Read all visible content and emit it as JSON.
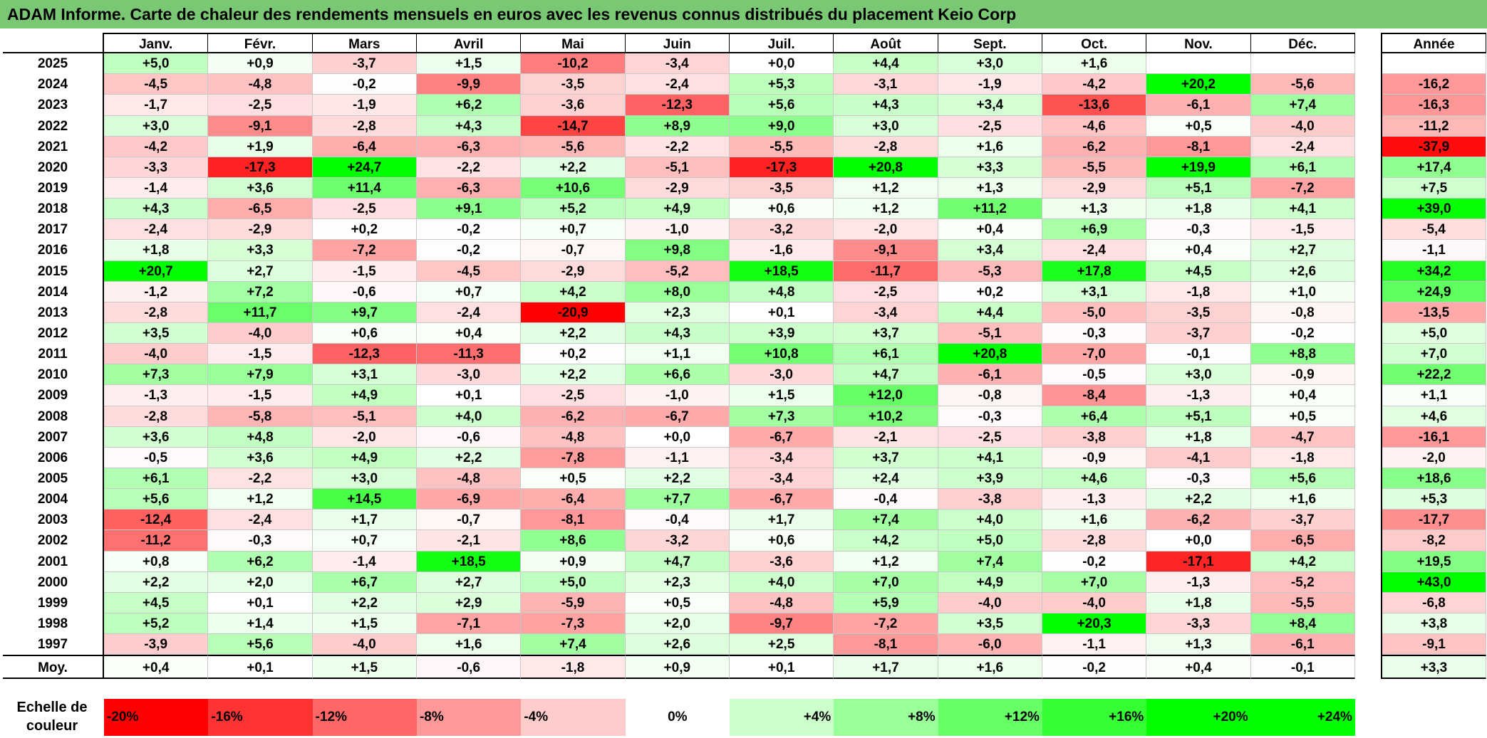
{
  "title": "ADAM Informe. Carte de chaleur des rendements mensuels en euros avec les revenus connus distribués du placement Keio Corp",
  "colors": {
    "title_bg": "#7ac774",
    "red": "#ff0000",
    "green": "#00ff00"
  },
  "chart_data": {
    "type": "heatmap",
    "columns": [
      "Janv.",
      "Févr.",
      "Mars",
      "Avril",
      "Mai",
      "Juin",
      "Juil.",
      "Août",
      "Sept.",
      "Oct.",
      "Nov.",
      "Déc."
    ],
    "annual_header": "Année",
    "rows": [
      {
        "year": "2025",
        "values": [
          "+5,0",
          "+0,9",
          "-3,7",
          "+1,5",
          "-10,2",
          "-3,4",
          "+0,0",
          "+4,4",
          "+3,0",
          "+1,6",
          "",
          ""
        ],
        "annual": ""
      },
      {
        "year": "2024",
        "values": [
          "-4,5",
          "-4,8",
          "-0,2",
          "-9,9",
          "-3,5",
          "-2,4",
          "+5,3",
          "-3,1",
          "-1,9",
          "-4,2",
          "+20,2",
          "-5,6"
        ],
        "annual": "-16,2"
      },
      {
        "year": "2023",
        "values": [
          "-1,7",
          "-2,5",
          "-1,9",
          "+6,2",
          "-3,6",
          "-12,3",
          "+5,6",
          "+4,3",
          "+3,4",
          "-13,6",
          "-6,1",
          "+7,4"
        ],
        "annual": "-16,3"
      },
      {
        "year": "2022",
        "values": [
          "+3,0",
          "-9,1",
          "-2,8",
          "+4,3",
          "-14,7",
          "+8,9",
          "+9,0",
          "+3,0",
          "-2,5",
          "-4,6",
          "+0,5",
          "-4,0"
        ],
        "annual": "-11,2"
      },
      {
        "year": "2021",
        "values": [
          "-4,2",
          "+1,9",
          "-6,4",
          "-6,3",
          "-5,6",
          "-2,2",
          "-5,5",
          "-2,8",
          "+1,6",
          "-6,2",
          "-8,1",
          "-2,4"
        ],
        "annual": "-37,9"
      },
      {
        "year": "2020",
        "values": [
          "-3,3",
          "-17,3",
          "+24,7",
          "-2,2",
          "+2,2",
          "-5,1",
          "-17,3",
          "+20,8",
          "+3,3",
          "-5,5",
          "+19,9",
          "+6,1"
        ],
        "annual": "+17,4"
      },
      {
        "year": "2019",
        "values": [
          "-1,4",
          "+3,6",
          "+11,4",
          "-6,3",
          "+10,6",
          "-2,9",
          "-3,5",
          "+1,2",
          "+1,3",
          "-2,9",
          "+5,1",
          "-7,2"
        ],
        "annual": "+7,5"
      },
      {
        "year": "2018",
        "values": [
          "+4,3",
          "-6,5",
          "-2,5",
          "+9,1",
          "+5,2",
          "+4,9",
          "+0,6",
          "+1,2",
          "+11,2",
          "+1,3",
          "+1,8",
          "+4,1"
        ],
        "annual": "+39,0"
      },
      {
        "year": "2017",
        "values": [
          "-2,4",
          "-2,9",
          "+0,2",
          "-0,2",
          "+0,7",
          "-1,0",
          "-3,2",
          "-2,0",
          "+0,4",
          "+6,9",
          "-0,3",
          "-1,5"
        ],
        "annual": "-5,4"
      },
      {
        "year": "2016",
        "values": [
          "+1,8",
          "+3,3",
          "-7,2",
          "-0,2",
          "-0,7",
          "+9,8",
          "-1,6",
          "-9,1",
          "+3,4",
          "-2,4",
          "+0,4",
          "+2,7"
        ],
        "annual": "-1,1"
      },
      {
        "year": "2015",
        "values": [
          "+20,7",
          "+2,7",
          "-1,5",
          "-4,5",
          "-2,9",
          "-5,2",
          "+18,5",
          "-11,7",
          "-5,3",
          "+17,8",
          "+4,5",
          "+2,6"
        ],
        "annual": "+34,2"
      },
      {
        "year": "2014",
        "values": [
          "-1,2",
          "+7,2",
          "-0,6",
          "+0,7",
          "+4,2",
          "+8,0",
          "+4,8",
          "-2,5",
          "+0,2",
          "+3,1",
          "-1,8",
          "+1,0"
        ],
        "annual": "+24,9"
      },
      {
        "year": "2013",
        "values": [
          "-2,8",
          "+11,7",
          "+9,7",
          "-2,4",
          "-20,9",
          "+2,3",
          "+0,1",
          "-3,4",
          "+4,4",
          "-5,0",
          "-3,5",
          "-0,8"
        ],
        "annual": "-13,5"
      },
      {
        "year": "2012",
        "values": [
          "+3,5",
          "-4,0",
          "+0,6",
          "+0,4",
          "+2,2",
          "+4,3",
          "+3,9",
          "+3,7",
          "-5,1",
          "-0,3",
          "-3,7",
          "-0,2"
        ],
        "annual": "+5,0"
      },
      {
        "year": "2011",
        "values": [
          "-4,0",
          "-1,5",
          "-12,3",
          "-11,3",
          "+0,2",
          "+1,1",
          "+10,8",
          "+6,1",
          "+20,8",
          "-7,0",
          "-0,1",
          "+8,8"
        ],
        "annual": "+7,0"
      },
      {
        "year": "2010",
        "values": [
          "+7,3",
          "+7,9",
          "+3,1",
          "-3,0",
          "+2,2",
          "+6,6",
          "-3,0",
          "+4,7",
          "-6,1",
          "-0,5",
          "+3,0",
          "-0,9"
        ],
        "annual": "+22,2"
      },
      {
        "year": "2009",
        "values": [
          "-1,3",
          "-1,5",
          "+4,9",
          "+0,1",
          "-2,5",
          "-1,0",
          "+1,5",
          "+12,0",
          "-0,8",
          "-8,4",
          "-1,3",
          "+0,4"
        ],
        "annual": "+1,1"
      },
      {
        "year": "2008",
        "values": [
          "-2,8",
          "-5,8",
          "-5,1",
          "+4,0",
          "-6,2",
          "-6,7",
          "+7,3",
          "+10,2",
          "-0,3",
          "+6,4",
          "+5,1",
          "+0,5"
        ],
        "annual": "+4,6"
      },
      {
        "year": "2007",
        "values": [
          "+3,6",
          "+4,8",
          "-2,0",
          "-0,6",
          "-4,8",
          "+0,0",
          "-6,7",
          "-2,1",
          "-2,5",
          "-3,8",
          "+1,8",
          "-4,7"
        ],
        "annual": "-16,1"
      },
      {
        "year": "2006",
        "values": [
          "-0,5",
          "+3,6",
          "+4,9",
          "+2,2",
          "-7,8",
          "-1,1",
          "-3,4",
          "+3,7",
          "+4,1",
          "-0,9",
          "-4,1",
          "-1,8"
        ],
        "annual": "-2,0"
      },
      {
        "year": "2005",
        "values": [
          "+6,1",
          "-2,2",
          "+3,0",
          "-4,8",
          "+0,5",
          "+2,2",
          "-3,4",
          "+2,4",
          "+3,9",
          "+4,6",
          "-0,3",
          "+5,6"
        ],
        "annual": "+18,6"
      },
      {
        "year": "2004",
        "values": [
          "+5,6",
          "+1,2",
          "+14,5",
          "-6,9",
          "-6,4",
          "+7,7",
          "-6,7",
          "-0,4",
          "-3,8",
          "-1,3",
          "+2,2",
          "+1,6"
        ],
        "annual": "+5,3"
      },
      {
        "year": "2003",
        "values": [
          "-12,4",
          "-2,4",
          "+1,7",
          "-0,7",
          "-8,1",
          "-0,4",
          "+1,7",
          "+7,4",
          "+4,0",
          "+1,6",
          "-6,2",
          "-3,7"
        ],
        "annual": "-17,7"
      },
      {
        "year": "2002",
        "values": [
          "-11,2",
          "-0,3",
          "+0,7",
          "-2,1",
          "+8,6",
          "-3,2",
          "+0,6",
          "+4,2",
          "+5,0",
          "-2,8",
          "+0,0",
          "-6,5"
        ],
        "annual": "-8,2"
      },
      {
        "year": "2001",
        "values": [
          "+0,8",
          "+6,2",
          "-1,4",
          "+18,5",
          "+0,9",
          "+4,7",
          "-3,6",
          "+1,2",
          "+7,4",
          "-0,2",
          "-17,1",
          "+4,2"
        ],
        "annual": "+19,5"
      },
      {
        "year": "2000",
        "values": [
          "+2,2",
          "+2,0",
          "+6,7",
          "+2,7",
          "+5,0",
          "+2,3",
          "+4,0",
          "+7,0",
          "+4,9",
          "+7,0",
          "-1,3",
          "-5,2"
        ],
        "annual": "+43,0"
      },
      {
        "year": "1999",
        "values": [
          "+4,5",
          "+0,1",
          "+2,2",
          "+2,9",
          "-5,9",
          "+0,5",
          "-4,8",
          "+5,9",
          "-4,0",
          "-4,0",
          "+1,8",
          "-5,5"
        ],
        "annual": "-6,8"
      },
      {
        "year": "1998",
        "values": [
          "+5,2",
          "+1,4",
          "+1,5",
          "-7,1",
          "-7,3",
          "+2,0",
          "-9,7",
          "-7,2",
          "+3,5",
          "+20,3",
          "-3,3",
          "+8,4"
        ],
        "annual": "+3,8"
      },
      {
        "year": "1997",
        "values": [
          "-3,9",
          "+5,6",
          "-4,0",
          "+1,6",
          "+7,4",
          "+2,6",
          "+2,5",
          "-8,1",
          "-6,0",
          "-1,1",
          "+1,3",
          "-6,1"
        ],
        "annual": "-9,1"
      }
    ],
    "average": {
      "label": "Moy.",
      "values": [
        "+0,4",
        "+0,1",
        "+1,5",
        "-0,6",
        "-1,8",
        "+0,9",
        "+0,1",
        "+1,7",
        "+1,6",
        "-0,2",
        "+0,4",
        "-0,1"
      ],
      "annual": "+3,3"
    },
    "scale": {
      "label": "Echelle de couleur",
      "steps": [
        {
          "label": "-20%",
          "value": -20
        },
        {
          "label": "-16%",
          "value": -16
        },
        {
          "label": "-12%",
          "value": -12
        },
        {
          "label": "-8%",
          "value": -8
        },
        {
          "label": "-4%",
          "value": -4
        },
        {
          "label": "0%",
          "value": 0
        },
        {
          "label": "+4%",
          "value": 4
        },
        {
          "label": "+8%",
          "value": 8
        },
        {
          "label": "+12%",
          "value": 12
        },
        {
          "label": "+16%",
          "value": 16
        },
        {
          "label": "+20%",
          "value": 20
        },
        {
          "label": "+24%",
          "value": 24
        }
      ]
    }
  }
}
